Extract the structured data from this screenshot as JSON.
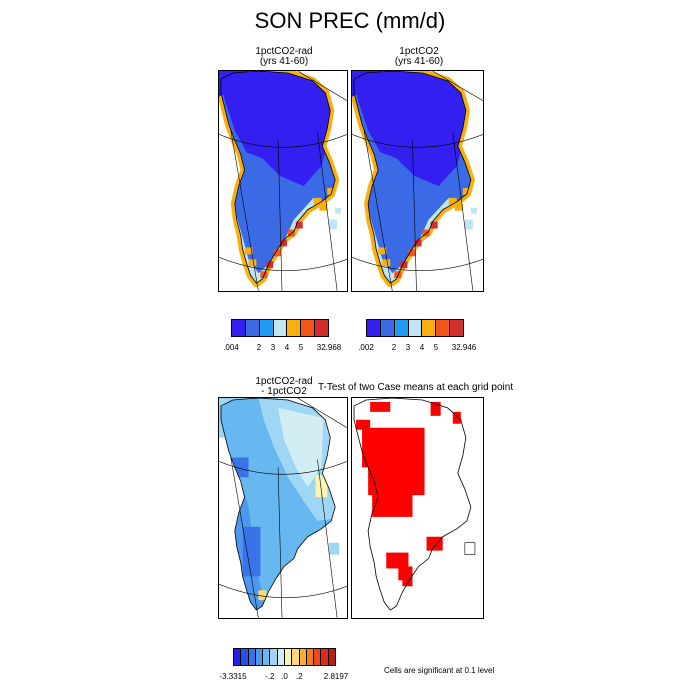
{
  "title": "SON PREC (mm/d)",
  "panels": [
    {
      "line1": "1pctCO2-rad",
      "line2": "(yrs 41-60)",
      "colorbar_ticks": [
        ".004",
        "2",
        "3",
        "4",
        "5",
        "32.968"
      ]
    },
    {
      "line1": "1pctCO2",
      "line2": "(yrs 41-60)",
      "colorbar_ticks": [
        ".002",
        "2",
        "3",
        "4",
        "5",
        "32.946"
      ]
    },
    {
      "line1": "1pctCO2-rad",
      "line2": "- 1pctCO2",
      "colorbar_ticks": [
        "-3.3315",
        "-.2",
        ".0",
        ".2",
        "2.8197"
      ]
    },
    {
      "title": "T-Test of two Case means at each grid point",
      "note": "Cells are significant at 0.1 level"
    }
  ],
  "colors": {
    "prec_levels": [
      "#3320f0",
      "#3a6ae6",
      "#1e9cf2",
      "#bfe6f5",
      "#f9b00f",
      "#f2561c",
      "#d42d2d"
    ],
    "diff_levels": [
      "#2a1ee8",
      "#2e4de6",
      "#3a73e8",
      "#4d97ee",
      "#67b7f0",
      "#9fd6f4",
      "#d2eef4",
      "#faf4b4",
      "#fcd86e",
      "#f9ad2c",
      "#f47c20",
      "#ec4a1c",
      "#dc2a20",
      "#bc1c1c"
    ],
    "significant": "#ff0000"
  },
  "chart_data": [
    {
      "type": "heatmap",
      "name": "",
      "colorbar": {
        "min": 0.004,
        "max": 32.968,
        "ticks": [
          0.004,
          2,
          3,
          4,
          5,
          32.968
        ]
      }
    },
    {
      "type": "heatmap",
      "name": "",
      "colorbar": {
        "min": 0.002,
        "max": 32.946,
        "ticks": [
          0.002,
          2,
          3,
          4,
          5,
          32.946
        ]
      }
    },
    {
      "type": "heatmap",
      "name": "",
      "colorbar": {
        "min": -3.3315,
        "max": 2.8197,
        "ticks": [
          -3.3315,
          -0.2,
          0.0,
          0.2,
          2.8197
        ]
      }
    },
    {
      "type": "heatmap",
      "name": "",
      "legend": "Cells are significant at 0.1 level"
    }
  ]
}
